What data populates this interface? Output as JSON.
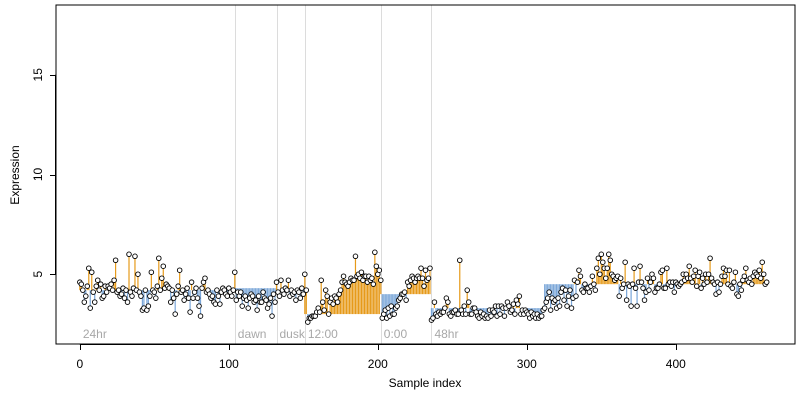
{
  "chart_data": {
    "type": "scatter",
    "xlabel": "Sample index",
    "ylabel": "Expression",
    "xlim": [
      -16,
      480
    ],
    "ylim": [
      1.5,
      18.5
    ],
    "xticks": [
      0,
      100,
      200,
      300,
      400
    ],
    "yticks": [
      5,
      10,
      15
    ],
    "grid": false,
    "colors": {
      "above": "#e69a1a",
      "below": "#7aa6d8",
      "marker": "#000000",
      "vline": "#dcdcdc",
      "vlabel": "#a8a8a8"
    },
    "condition_lines": [
      {
        "x": 104,
        "label": "dawn"
      },
      {
        "x": 132,
        "label": "dusk"
      },
      {
        "x": 151,
        "label": "12:00"
      },
      {
        "x": 202,
        "label": "0:00"
      },
      {
        "x": 236,
        "label": "48hr"
      }
    ],
    "start_label": "24hr",
    "segments": [
      {
        "start": 0,
        "end": 104,
        "baseline": 4.2,
        "values": [
          4.6,
          4.5,
          4.2,
          3.6,
          3.9,
          4.4,
          5.3,
          3.3,
          5.1,
          4.1,
          3.6,
          4.4,
          4.7,
          4.2,
          4.5,
          3.8,
          3.9,
          4.4,
          4.1,
          4.4,
          4.3,
          4.5,
          4.2,
          4.7,
          5.7,
          4.1,
          4.2,
          3.9,
          4.0,
          4.3,
          3.8,
          4.2,
          3.6,
          6.0,
          4.1,
          3.9,
          4.3,
          5.9,
          4.2,
          5.0,
          4.1,
          3.9,
          3.2,
          3.3,
          4.2,
          3.2,
          3.4,
          3.9,
          5.1,
          4.2,
          4.1,
          3.8,
          4.4,
          5.8,
          4.2,
          4.8,
          5.4,
          4.3,
          4.5,
          4.4,
          4.3,
          3.6,
          4.2,
          3.8,
          3.0,
          4.0,
          4.4,
          5.2,
          4.1,
          4.2,
          3.7,
          4.0,
          4.3,
          3.8,
          3.1,
          4.6,
          3.8,
          4.1,
          4.3,
          3.8,
          3.4,
          2.9,
          4.3,
          4.6,
          4.8,
          4.1,
          4.2,
          4.0,
          3.8,
          3.9,
          3.6,
          3.5,
          4.2,
          3.9,
          3.5,
          4.1,
          4.3,
          4.2,
          4.0,
          3.9,
          4.3,
          4.1,
          3.9,
          4.2
        ]
      },
      {
        "start": 104,
        "end": 132,
        "baseline": 4.3,
        "values": [
          5.1,
          3.7,
          4.1,
          3.9,
          4.1,
          3.4,
          3.8,
          3.9,
          3.7,
          3.3,
          3.8,
          4.0,
          3.9,
          3.6,
          3.7,
          3.2,
          3.9,
          3.6,
          3.6,
          4.1,
          3.8,
          3.7,
          3.3,
          3.5,
          3.8,
          2.9,
          4.0,
          3.6
        ]
      },
      {
        "start": 132,
        "end": 151,
        "baseline": 4.2,
        "values": [
          4.6,
          4.1,
          3.9,
          4.7,
          4.2,
          4.0,
          4.3,
          4.2,
          4.7,
          3.9,
          4.2,
          4.0,
          4.1,
          3.7,
          4.2,
          4.1,
          3.8,
          4.3,
          4.0
        ]
      },
      {
        "start": 151,
        "end": 202,
        "baseline": 3.0,
        "values": [
          5.0,
          4.2,
          2.6,
          2.8,
          2.8,
          2.9,
          2.9,
          2.9,
          3.1,
          3.3,
          3.1,
          4.7,
          3.6,
          3.2,
          4.2,
          3.9,
          3.0,
          3.6,
          3.8,
          3.5,
          3.9,
          3.8,
          3.6,
          4.0,
          4.2,
          4.6,
          4.9,
          4.6,
          4.5,
          4.4,
          4.6,
          4.8,
          4.7,
          4.7,
          5.9,
          4.9,
          5.0,
          4.8,
          5.1,
          4.7,
          4.9,
          4.9,
          4.6,
          4.9,
          4.7,
          4.8,
          4.5,
          6.1,
          5.4,
          5.0,
          5.2
        ]
      },
      {
        "start": 202,
        "end": 236,
        "baseline": 4.0,
        "values": [
          4.7,
          2.8,
          3.0,
          3.2,
          2.8,
          3.3,
          2.9,
          3.4,
          3.0,
          3.0,
          3.3,
          3.4,
          3.7,
          3.8,
          4.0,
          4.0,
          4.1,
          3.7,
          4.6,
          4.4,
          4.7,
          4.9,
          4.8,
          4.6,
          4.8,
          4.9,
          4.8,
          5.3,
          4.8,
          4.4,
          5.2,
          4.7,
          4.8,
          5.3
        ]
      },
      {
        "start": 236,
        "end": 312,
        "baseline": 3.3,
        "values": [
          2.7,
          2.8,
          3.6,
          3.0,
          2.9,
          3.1,
          3.0,
          3.1,
          3.1,
          3.3,
          3.8,
          3.6,
          3.0,
          2.9,
          3.1,
          3.1,
          3.2,
          3.0,
          3.0,
          5.7,
          3.2,
          3.0,
          3.4,
          3.0,
          4.2,
          3.6,
          3.0,
          3.0,
          3.3,
          3.3,
          3.1,
          2.9,
          2.8,
          3.1,
          2.9,
          3.0,
          2.8,
          2.9,
          2.8,
          3.2,
          2.9,
          3.2,
          3.1,
          3.4,
          2.9,
          3.4,
          3.0,
          3.4,
          3.3,
          2.9,
          3.3,
          3.6,
          3.4,
          3.1,
          3.2,
          3.5,
          3.0,
          3.7,
          3.5,
          3.9,
          3.0,
          3.2,
          3.0,
          3.2,
          3.1,
          3.0,
          2.8,
          3.1,
          2.9,
          3.0,
          2.8,
          3.0,
          2.8,
          2.9,
          2.9,
          3.2
        ]
      },
      {
        "start": 312,
        "end": 462,
        "baseline": 4.5,
        "values": [
          3.3,
          3.6,
          3.8,
          4.1,
          3.2,
          3.8,
          3.6,
          3.7,
          3.3,
          3.8,
          3.4,
          4.1,
          4.3,
          3.7,
          4.2,
          3.4,
          3.9,
          4.2,
          3.3,
          3.8,
          4.7,
          3.9,
          4.6,
          5.2,
          4.9,
          4.2,
          4.1,
          4.5,
          4.3,
          4.3,
          4.1,
          4.4,
          4.9,
          4.5,
          4.2,
          5.3,
          5.8,
          5.0,
          6.0,
          5.6,
          5.3,
          4.8,
          5.3,
          6.0,
          5.7,
          5.0,
          4.9,
          4.7,
          4.8,
          4.9,
          3.9,
          4.8,
          4.3,
          4.5,
          5.6,
          3.7,
          4.5,
          4.4,
          3.4,
          4.5,
          5.3,
          4.3,
          3.4,
          4.6,
          5.4,
          4.6,
          4.3,
          3.7,
          4.1,
          4.8,
          4.2,
          4.6,
          5.0,
          4.8,
          4.1,
          4.3,
          4.3,
          4.5,
          5.1,
          5.2,
          4.3,
          4.3,
          5.3,
          4.5,
          4.6,
          4.4,
          4.6,
          4.1,
          4.6,
          4.5,
          4.4,
          4.5,
          4.6,
          5.0,
          4.7,
          5.0,
          4.8,
          5.4,
          4.8,
          4.6,
          4.9,
          5.2,
          4.4,
          4.9,
          5.1,
          4.3,
          4.8,
          4.5,
          5.0,
          4.6,
          5.0,
          5.8,
          4.8,
          4.6,
          4.5,
          4.0,
          4.6,
          4.1,
          4.5,
          4.9,
          5.3,
          4.9,
          5.2,
          4.5,
          5.2,
          4.4,
          4.3,
          4.6,
          5.1,
          4.0,
          3.9,
          4.5,
          4.2,
          4.7,
          4.9,
          5.3,
          4.7,
          4.6,
          4.8,
          4.5,
          4.9,
          5.1,
          5.0,
          4.9,
          5.2,
          4.8,
          5.6,
          5.0,
          4.5,
          4.6
        ]
      }
    ]
  }
}
